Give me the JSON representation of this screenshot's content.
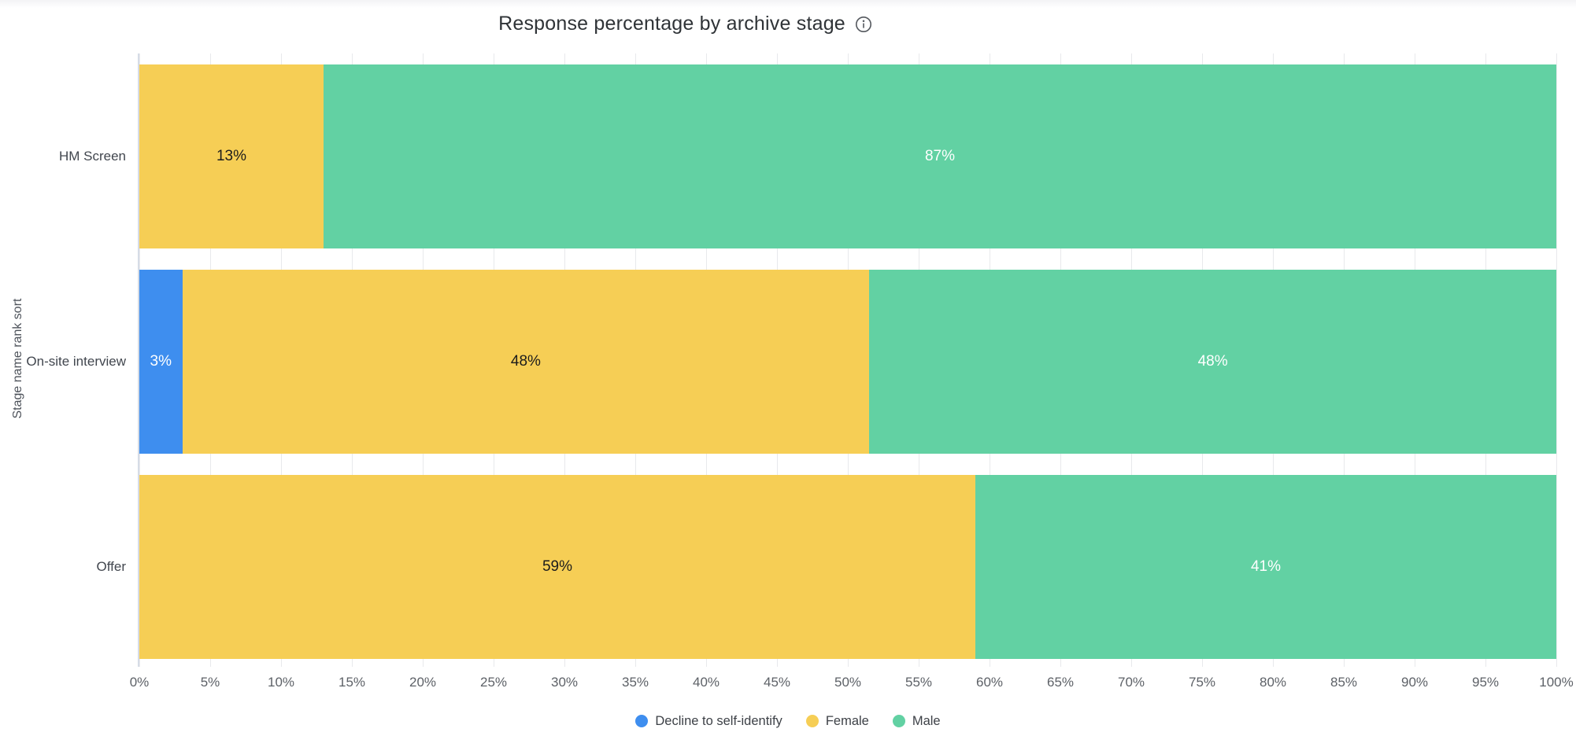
{
  "header": {
    "title": "Response percentage by archive stage",
    "info_icon": "info-icon"
  },
  "colors": {
    "decline_blue": "#3E8EEF",
    "female_yellow": "#F6CE55",
    "male_green": "#62D1A3",
    "gridline": "#E8E9EC",
    "axis_line": "#D6DCE6",
    "label_dark": "#1C1C1C",
    "label_light": "#FFFFFF",
    "title_text": "#2F3337",
    "tick_text": "#5D6167"
  },
  "chart_data": {
    "type": "bar",
    "orientation": "horizontal",
    "stacked": true,
    "title": "Response percentage by archive stage",
    "xlabel": "",
    "ylabel": "Stage name rank sort",
    "categories": [
      "HM Screen",
      "On-site interview",
      "Offer"
    ],
    "series": [
      {
        "name": "Decline to self-identify",
        "color": "#3E8EEF",
        "label_style": "light",
        "values": [
          0,
          3,
          0
        ]
      },
      {
        "name": "Female",
        "color": "#F6CE55",
        "label_style": "dark",
        "values": [
          13,
          48,
          59
        ]
      },
      {
        "name": "Male",
        "color": "#62D1A3",
        "label_style": "light",
        "values": [
          87,
          48,
          41
        ]
      }
    ],
    "value_suffix": "%",
    "xlim": [
      0,
      100
    ],
    "x_ticks": [
      "0%",
      "5%",
      "10%",
      "15%",
      "20%",
      "25%",
      "30%",
      "35%",
      "40%",
      "45%",
      "50%",
      "55%",
      "60%",
      "65%",
      "70%",
      "75%",
      "80%",
      "85%",
      "90%",
      "95%",
      "100%"
    ],
    "grid": true,
    "legend_position": "bottom-center"
  },
  "legend": {
    "items": [
      {
        "label": "Decline to self-identify",
        "color": "#3E8EEF"
      },
      {
        "label": "Female",
        "color": "#F6CE55"
      },
      {
        "label": "Male",
        "color": "#62D1A3"
      }
    ]
  }
}
